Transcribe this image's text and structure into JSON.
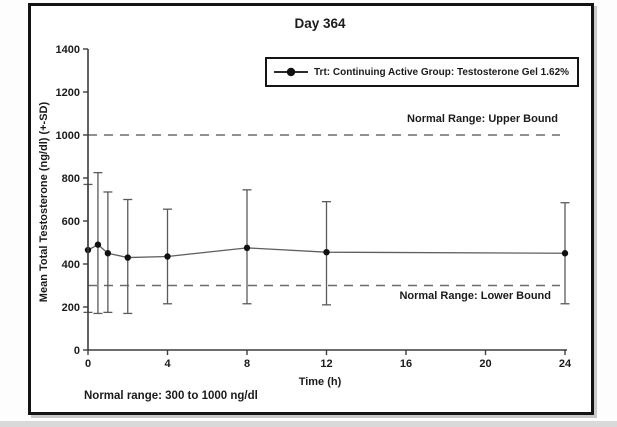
{
  "figure": {
    "title": "Day 364",
    "footnote": "Normal range: 300 to 1000 ng/dl"
  },
  "chart_data": {
    "type": "line",
    "title": "Day 364",
    "xlabel": "Time (h)",
    "ylabel": "Mean Total Testosterone (ng/dl) (+-SD)",
    "xlim": [
      0,
      24
    ],
    "ylim": [
      0,
      1400
    ],
    "x_ticks": [
      0,
      4,
      8,
      12,
      16,
      20,
      24
    ],
    "y_ticks": [
      0,
      200,
      400,
      600,
      800,
      1000,
      1200,
      1400
    ],
    "grid": false,
    "legend_position": "top-right",
    "series": [
      {
        "name": "Trt: Continuing Active Group: Testosterone Gel 1.62%",
        "marker": "filled-circle",
        "x": [
          0,
          0.5,
          1,
          2,
          4,
          8,
          12,
          24
        ],
        "y": [
          465,
          490,
          450,
          430,
          435,
          475,
          455,
          450
        ],
        "y_upper": [
          770,
          825,
          735,
          700,
          655,
          745,
          690,
          685
        ],
        "y_lower": [
          175,
          170,
          175,
          170,
          215,
          215,
          210,
          215
        ]
      }
    ],
    "reference_lines": [
      {
        "value": 1000,
        "style": "dashed",
        "label": "Normal Range: Upper Bound"
      },
      {
        "value": 300,
        "style": "dashed",
        "label": "Normal Range: Lower Bound"
      }
    ],
    "annotation": "Normal range: 300 to 1000 ng/dl"
  },
  "colors": {
    "text": "#1b1b1b",
    "frame_border": "#141414",
    "axis": "#3d3d3d",
    "data_line": "#5f5f5f",
    "marker": "#111111",
    "error_bar": "#5a5a5a",
    "dashed_reference": "#6b6b6b",
    "background": "#ffffff"
  }
}
